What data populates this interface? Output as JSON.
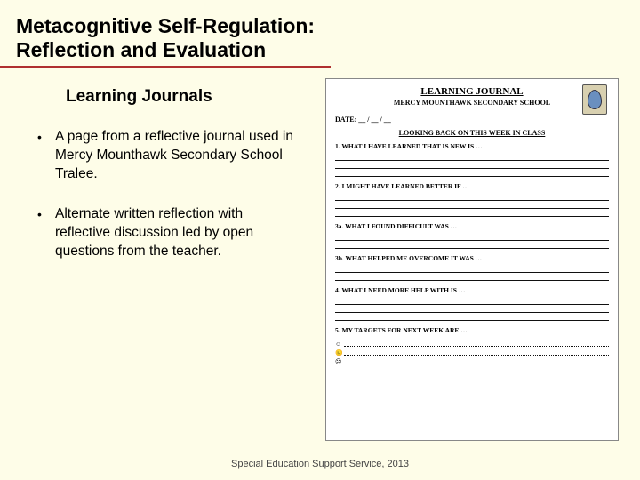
{
  "colors": {
    "bg": "#fefde8",
    "underline": "#b03030",
    "text": "#000000",
    "footer": "#444444",
    "journal_border": "#888888"
  },
  "title": {
    "line1": "Metacognitive Self-Regulation:",
    "line2": "Reflection and Evaluation"
  },
  "subtitle": "Learning Journals",
  "bullets": [
    "A page from a reflective journal used in Mercy Mounthawk Secondary School Tralee.",
    "Alternate written reflection with reflective discussion led by open questions from the teacher."
  ],
  "footer": "Special Education Support Service, 2013",
  "journal": {
    "title": "LEARNING JOURNAL",
    "school": "MERCY MOUNTHAWK SECONDARY SCHOOL",
    "date_label": "DATE: __ / __ / __",
    "looking_back": "LOOKING BACK ON THIS WEEK IN CLASS",
    "sections": [
      "1. WHAT I HAVE LEARNED THAT IS NEW IS …",
      "2. I MIGHT HAVE LEARNED BETTER IF …",
      "3a. WHAT I FOUND DIFFICULT WAS …",
      "3b. WHAT HELPED ME OVERCOME IT WAS …",
      "4. WHAT I NEED MORE HELP WITH IS …",
      "5. MY TARGETS FOR NEXT WEEK ARE …"
    ],
    "faces": [
      "☺",
      "😐",
      "☹"
    ]
  }
}
